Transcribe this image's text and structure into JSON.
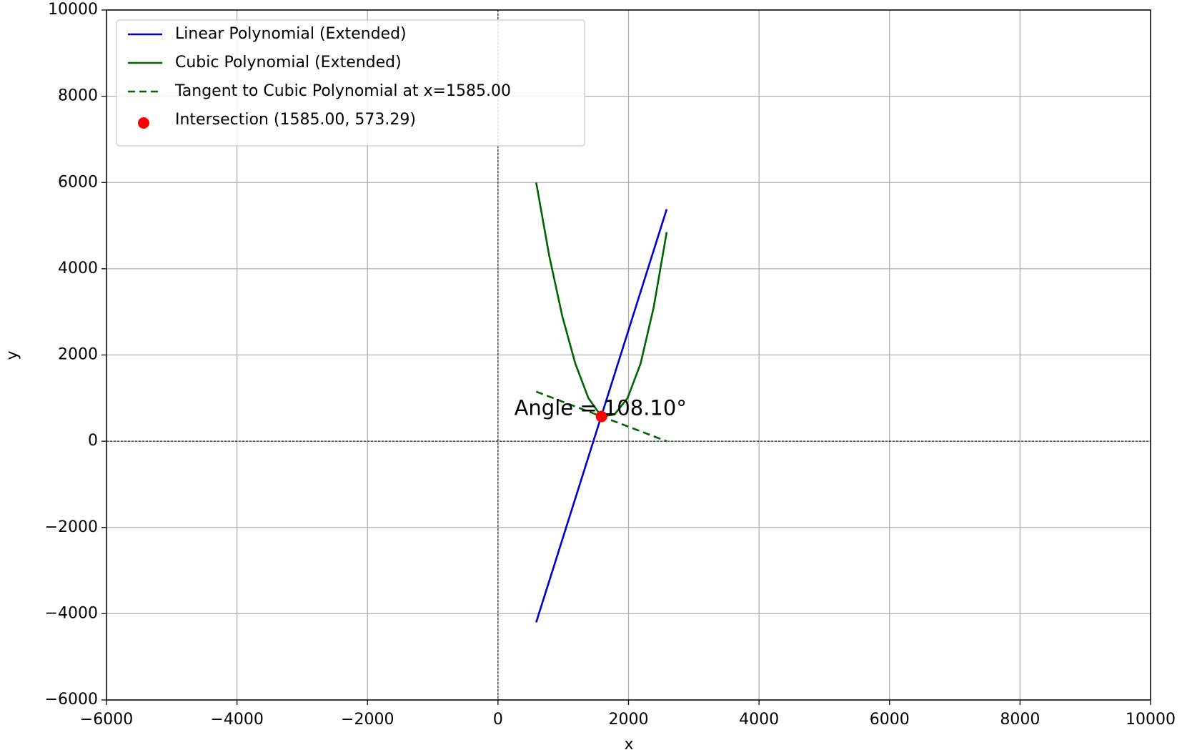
{
  "chart_data": {
    "type": "line",
    "xlabel": "x",
    "ylabel": "y",
    "xlim": [
      -6000,
      10000
    ],
    "ylim": [
      -6000,
      10000
    ],
    "xticks": [
      {
        "value": -6000,
        "label": "−6000"
      },
      {
        "value": -4000,
        "label": "−4000"
      },
      {
        "value": -2000,
        "label": "−2000"
      },
      0,
      2000,
      4000,
      6000,
      8000,
      10000
    ],
    "yticks": [
      {
        "value": -6000,
        "label": "−6000"
      },
      {
        "value": -4000,
        "label": "−4000"
      },
      {
        "value": -2000,
        "label": "−2000"
      },
      0,
      2000,
      4000,
      6000,
      8000,
      10000
    ],
    "grid": true,
    "zero_lines": true,
    "legend": "upper left",
    "annotation": "Angle = 108.10°",
    "series": [
      {
        "name": "Linear Polynomial (Extended)",
        "type": "line",
        "color": "#0000cc",
        "linestyle": "solid",
        "x": [
          585,
          2585
        ],
        "y": [
          -4200,
          5380
        ]
      },
      {
        "name": "Cubic Polynomial (Extended)",
        "type": "line",
        "color": "#006400",
        "linestyle": "solid",
        "x": [
          585,
          785,
          985,
          1185,
          1385,
          1585,
          1785,
          1985,
          2185,
          2385,
          2585
        ],
        "y": [
          6000,
          4300,
          2900,
          1800,
          1000,
          573,
          620,
          1000,
          1800,
          3100,
          4850
        ]
      },
      {
        "name": "Tangent to Cubic Polynomial at x=1585.00",
        "type": "line",
        "color": "#006400",
        "linestyle": "dashed",
        "x": [
          585,
          2585
        ],
        "y": [
          1150,
          0
        ]
      },
      {
        "name": "Intersection (1585.00, 573.29)",
        "type": "scatter",
        "color": "#ff0000",
        "x": [
          1585
        ],
        "y": [
          573.29
        ]
      }
    ]
  }
}
